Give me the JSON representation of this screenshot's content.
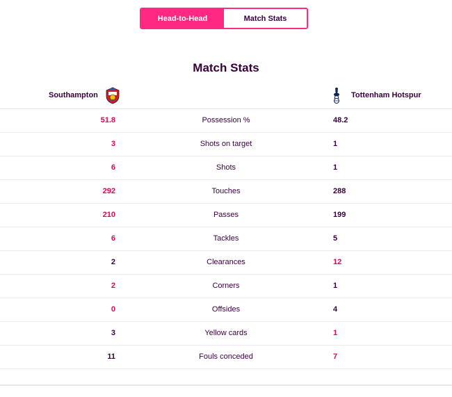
{
  "tabs": [
    {
      "label": "Head-to-Head",
      "active": true
    },
    {
      "label": "Match Stats",
      "active": false
    }
  ],
  "title": "Match Stats",
  "home_team": {
    "name": "Southampton",
    "icon": "southampton-crest-icon"
  },
  "away_team": {
    "name": "Tottenham Hotspur",
    "icon": "tottenham-crest-icon"
  },
  "colors": {
    "accent": "#ff2882",
    "lead": "#e90052",
    "text": "#37003c"
  },
  "stats": [
    {
      "label": "Possession %",
      "home": "51.8",
      "away": "48.2",
      "home_lead": true,
      "away_lead": false
    },
    {
      "label": "Shots on target",
      "home": "3",
      "away": "1",
      "home_lead": true,
      "away_lead": false
    },
    {
      "label": "Shots",
      "home": "6",
      "away": "1",
      "home_lead": true,
      "away_lead": false
    },
    {
      "label": "Touches",
      "home": "292",
      "away": "288",
      "home_lead": true,
      "away_lead": false
    },
    {
      "label": "Passes",
      "home": "210",
      "away": "199",
      "home_lead": true,
      "away_lead": false
    },
    {
      "label": "Tackles",
      "home": "6",
      "away": "5",
      "home_lead": true,
      "away_lead": false
    },
    {
      "label": "Clearances",
      "home": "2",
      "away": "12",
      "home_lead": false,
      "away_lead": true
    },
    {
      "label": "Corners",
      "home": "2",
      "away": "1",
      "home_lead": true,
      "away_lead": false
    },
    {
      "label": "Offsides",
      "home": "0",
      "away": "4",
      "home_lead": true,
      "away_lead": false
    },
    {
      "label": "Yellow cards",
      "home": "3",
      "away": "1",
      "home_lead": false,
      "away_lead": true
    },
    {
      "label": "Fouls conceded",
      "home": "11",
      "away": "7",
      "home_lead": false,
      "away_lead": true
    }
  ]
}
